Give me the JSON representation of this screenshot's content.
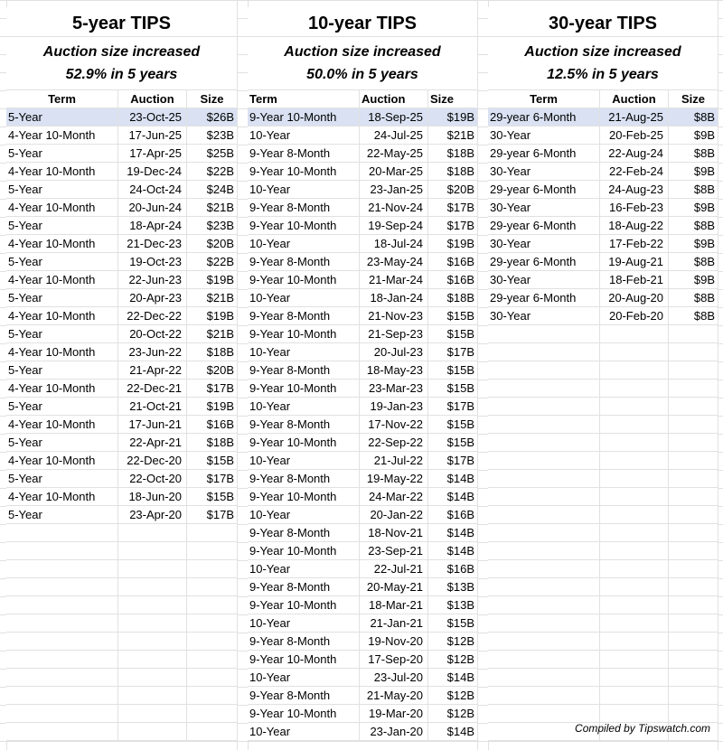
{
  "columns": [
    "Term",
    "Auction",
    "Size"
  ],
  "credit": "Compiled by Tipswatch.com",
  "highlight_color": "#d9e1f2",
  "panels": [
    {
      "title": "5-year TIPS",
      "subtitle_line1": "Auction size increased",
      "subtitle_line2": "52.9% in 5 years",
      "rows": [
        [
          "5-Year",
          "23-Oct-25",
          "$26B"
        ],
        [
          "4-Year 10-Month",
          "17-Jun-25",
          "$23B"
        ],
        [
          "5-Year",
          "17-Apr-25",
          "$25B"
        ],
        [
          "4-Year 10-Month",
          "19-Dec-24",
          "$22B"
        ],
        [
          "5-Year",
          "24-Oct-24",
          "$24B"
        ],
        [
          "4-Year 10-Month",
          "20-Jun-24",
          "$21B"
        ],
        [
          "5-Year",
          "18-Apr-24",
          "$23B"
        ],
        [
          "4-Year 10-Month",
          "21-Dec-23",
          "$20B"
        ],
        [
          "5-Year",
          "19-Oct-23",
          "$22B"
        ],
        [
          "4-Year 10-Month",
          "22-Jun-23",
          "$19B"
        ],
        [
          "5-Year",
          "20-Apr-23",
          "$21B"
        ],
        [
          "4-Year 10-Month",
          "22-Dec-22",
          "$19B"
        ],
        [
          "5-Year",
          "20-Oct-22",
          "$21B"
        ],
        [
          "4-Year 10-Month",
          "23-Jun-22",
          "$18B"
        ],
        [
          "5-Year",
          "21-Apr-22",
          "$20B"
        ],
        [
          "4-Year 10-Month",
          "22-Dec-21",
          "$17B"
        ],
        [
          "5-Year",
          "21-Oct-21",
          "$19B"
        ],
        [
          "4-Year 10-Month",
          "17-Jun-21",
          "$16B"
        ],
        [
          "5-Year",
          "22-Apr-21",
          "$18B"
        ],
        [
          "4-Year 10-Month",
          "22-Dec-20",
          "$15B"
        ],
        [
          "5-Year",
          "22-Oct-20",
          "$17B"
        ],
        [
          "4-Year 10-Month",
          "18-Jun-20",
          "$15B"
        ],
        [
          "5-Year",
          "23-Apr-20",
          "$17B"
        ]
      ]
    },
    {
      "title": "10-year TIPS",
      "subtitle_line1": "Auction size increased",
      "subtitle_line2": "50.0% in 5 years",
      "rows": [
        [
          "9-Year 10-Month",
          "18-Sep-25",
          "$19B"
        ],
        [
          "10-Year",
          "24-Jul-25",
          "$21B"
        ],
        [
          "9-Year 8-Month",
          "22-May-25",
          "$18B"
        ],
        [
          "9-Year 10-Month",
          "20-Mar-25",
          "$18B"
        ],
        [
          "10-Year",
          "23-Jan-25",
          "$20B"
        ],
        [
          "9-Year 8-Month",
          "21-Nov-24",
          "$17B"
        ],
        [
          "9-Year 10-Month",
          "19-Sep-24",
          "$17B"
        ],
        [
          "10-Year",
          "18-Jul-24",
          "$19B"
        ],
        [
          "9-Year 8-Month",
          "23-May-24",
          "$16B"
        ],
        [
          "9-Year 10-Month",
          "21-Mar-24",
          "$16B"
        ],
        [
          "10-Year",
          "18-Jan-24",
          "$18B"
        ],
        [
          "9-Year 8-Month",
          "21-Nov-23",
          "$15B"
        ],
        [
          "9-Year 10-Month",
          "21-Sep-23",
          "$15B"
        ],
        [
          "10-Year",
          "20-Jul-23",
          "$17B"
        ],
        [
          "9-Year 8-Month",
          "18-May-23",
          "$15B"
        ],
        [
          "9-Year 10-Month",
          "23-Mar-23",
          "$15B"
        ],
        [
          "10-Year",
          "19-Jan-23",
          "$17B"
        ],
        [
          "9-Year 8-Month",
          "17-Nov-22",
          "$15B"
        ],
        [
          "9-Year 10-Month",
          "22-Sep-22",
          "$15B"
        ],
        [
          "10-Year",
          "21-Jul-22",
          "$17B"
        ],
        [
          "9-Year 8-Month",
          "19-May-22",
          "$14B"
        ],
        [
          "9-Year 10-Month",
          "24-Mar-22",
          "$14B"
        ],
        [
          "10-Year",
          "20-Jan-22",
          "$16B"
        ],
        [
          "9-Year 8-Month",
          "18-Nov-21",
          "$14B"
        ],
        [
          "9-Year 10-Month",
          "23-Sep-21",
          "$14B"
        ],
        [
          "10-Year",
          "22-Jul-21",
          "$16B"
        ],
        [
          "9-Year 8-Month",
          "20-May-21",
          "$13B"
        ],
        [
          "9-Year 10-Month",
          "18-Mar-21",
          "$13B"
        ],
        [
          "10-Year",
          "21-Jan-21",
          "$15B"
        ],
        [
          "9-Year 8-Month",
          "19-Nov-20",
          "$12B"
        ],
        [
          "9-Year 10-Month",
          "17-Sep-20",
          "$12B"
        ],
        [
          "10-Year",
          "23-Jul-20",
          "$14B"
        ],
        [
          "9-Year 8-Month",
          "21-May-20",
          "$12B"
        ],
        [
          "9-Year 10-Month",
          "19-Mar-20",
          "$12B"
        ],
        [
          "10-Year",
          "23-Jan-20",
          "$14B"
        ]
      ]
    },
    {
      "title": "30-year TIPS",
      "subtitle_line1": "Auction size increased",
      "subtitle_line2": "12.5% in 5 years",
      "rows": [
        [
          "29-year 6-Month",
          "21-Aug-25",
          "$8B"
        ],
        [
          "30-Year",
          "20-Feb-25",
          "$9B"
        ],
        [
          "29-year 6-Month",
          "22-Aug-24",
          "$8B"
        ],
        [
          "30-Year",
          "22-Feb-24",
          "$9B"
        ],
        [
          "29-year 6-Month",
          "24-Aug-23",
          "$8B"
        ],
        [
          "30-Year",
          "16-Feb-23",
          "$9B"
        ],
        [
          "29-year 6-Month",
          "18-Aug-22",
          "$8B"
        ],
        [
          "30-Year",
          "17-Feb-22",
          "$9B"
        ],
        [
          "29-year 6-Month",
          "19-Aug-21",
          "$8B"
        ],
        [
          "30-Year",
          "18-Feb-21",
          "$9B"
        ],
        [
          "29-year 6-Month",
          "20-Aug-20",
          "$8B"
        ],
        [
          "30-Year",
          "20-Feb-20",
          "$8B"
        ]
      ]
    }
  ]
}
